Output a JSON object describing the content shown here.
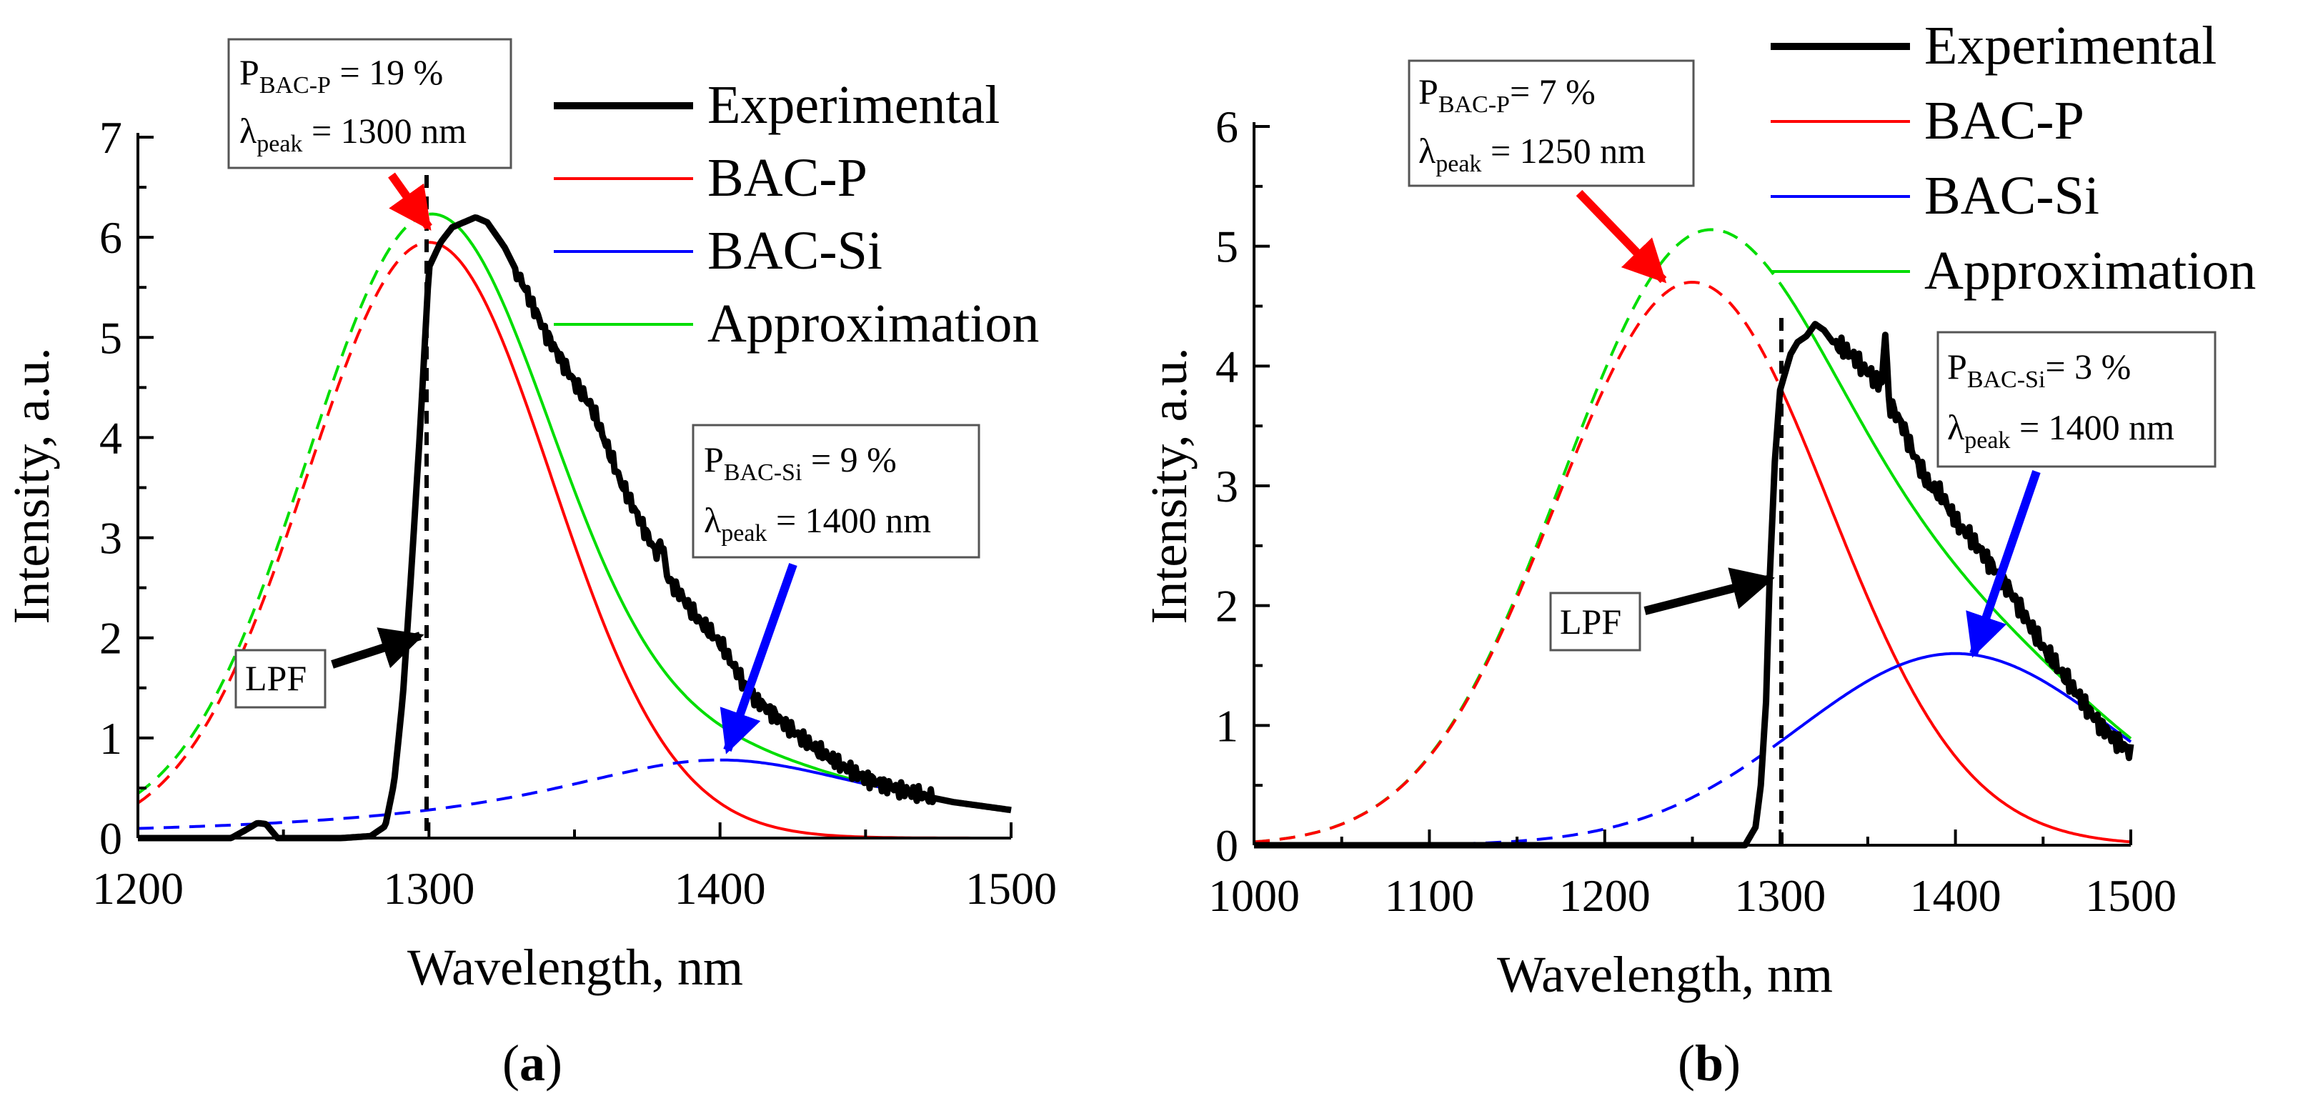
{
  "chart_data": [
    {
      "type": "line",
      "panel_label": "a",
      "xlabel": "Wavelength, nm",
      "ylabel": "Intensity, a.u.",
      "xlim": [
        1200,
        1500
      ],
      "ylim": [
        0,
        7
      ],
      "xticks": [
        1200,
        1300,
        1400,
        1500
      ],
      "yticks": [
        0,
        1,
        2,
        3,
        4,
        5,
        6,
        7
      ],
      "legend": [
        "Experimental",
        "BAC-P",
        "BAC-Si",
        "Approximation"
      ],
      "series": [
        {
          "name": "Experimental",
          "color": "#000000",
          "x": [
            1200,
            1232,
            1237,
            1241,
            1244,
            1248,
            1252,
            1270,
            1280,
            1285,
            1288,
            1291,
            1294,
            1297,
            1300,
            1304,
            1308,
            1312,
            1316,
            1320,
            1326,
            1332,
            1340,
            1350,
            1356,
            1360,
            1366,
            1372,
            1378,
            1380,
            1382,
            1386,
            1392,
            1400,
            1405,
            1410,
            1420,
            1430,
            1440,
            1450,
            1460,
            1470,
            1480,
            1490,
            1500
          ],
          "y": [
            0,
            0,
            0.08,
            0.15,
            0.14,
            0,
            0,
            0,
            0.02,
            0.12,
            0.55,
            1.4,
            2.7,
            4.1,
            5.7,
            5.95,
            6.1,
            6.15,
            6.2,
            6.15,
            5.9,
            5.55,
            5.05,
            4.55,
            4.3,
            4.0,
            3.55,
            3.2,
            2.85,
            2.95,
            2.6,
            2.45,
            2.2,
            1.95,
            1.7,
            1.45,
            1.2,
            0.95,
            0.75,
            0.6,
            0.5,
            0.42,
            0.36,
            0.32,
            0.28
          ]
        },
        {
          "name": "BAC-P",
          "color": "#ff0000",
          "center": 1300,
          "amplitude": 5.95,
          "sigma": 42,
          "dashed_below": 1300
        },
        {
          "name": "BAC-Si",
          "color": "#0000ff",
          "center": 1400,
          "amplitude": 0.78,
          "gamma": 75,
          "dashed_below": 1400
        },
        {
          "name": "Approximation",
          "color": "#00dd00",
          "dashed_below": 1300
        }
      ],
      "lpf_nm": 1300,
      "annotations": {
        "bac_p": {
          "symbol": "P",
          "sub": "BAC-P",
          "value": " = 19 %",
          "lambda": "λ",
          "lambda_sub": "peak",
          "lambda_value": " = 1300 nm"
        },
        "bac_si": {
          "symbol": "P",
          "sub": "BAC-Si",
          "value": " = 9 %",
          "lambda": "λ",
          "lambda_sub": "peak",
          "lambda_value": " = 1400 nm"
        },
        "lpf": "LPF"
      }
    },
    {
      "type": "line",
      "panel_label": "b",
      "xlabel": "Wavelength, nm",
      "ylabel": "Intensity, a.u.",
      "xlim": [
        1000,
        1500
      ],
      "ylim": [
        0,
        6
      ],
      "xticks": [
        1000,
        1100,
        1200,
        1300,
        1400,
        1500
      ],
      "yticks": [
        0,
        1,
        2,
        3,
        4,
        5,
        6
      ],
      "legend": [
        "Experimental",
        "BAC-P",
        "BAC-Si",
        "Approximation"
      ],
      "series": [
        {
          "name": "Experimental",
          "color": "#000000",
          "x": [
            1000,
            1280,
            1286,
            1289,
            1292,
            1294,
            1297,
            1300,
            1303,
            1306,
            1310,
            1315,
            1320,
            1325,
            1330,
            1340,
            1350,
            1358,
            1360,
            1362,
            1366,
            1370,
            1375,
            1380,
            1385,
            1390,
            1395,
            1400,
            1410,
            1420,
            1430,
            1440,
            1450,
            1460,
            1470,
            1480,
            1490,
            1500
          ],
          "y": [
            0,
            0,
            0.15,
            0.5,
            1.2,
            2.2,
            3.2,
            3.8,
            3.95,
            4.1,
            4.2,
            4.25,
            4.35,
            4.3,
            4.2,
            4.1,
            3.95,
            3.85,
            4.3,
            3.7,
            3.6,
            3.5,
            3.3,
            3.15,
            3.0,
            2.95,
            2.85,
            2.7,
            2.55,
            2.35,
            2.15,
            1.9,
            1.65,
            1.45,
            1.25,
            1.05,
            0.9,
            0.78
          ]
        },
        {
          "name": "BAC-P",
          "color": "#ff0000",
          "center": 1250,
          "amplitude": 4.7,
          "sigma": 78,
          "dashed_below": 1300
        },
        {
          "name": "BAC-Si",
          "color": "#0000ff",
          "center": 1400,
          "amplitude": 1.6,
          "sigma": 90,
          "dashed_below": 1300
        },
        {
          "name": "Approximation",
          "color": "#00dd00",
          "dashed_below": 1300
        }
      ],
      "lpf_nm": 1300,
      "annotations": {
        "bac_p": {
          "symbol": "P",
          "sub": "BAC-P",
          "value": "= 7 %",
          "lambda": "λ",
          "lambda_sub": "peak",
          "lambda_value": " = 1250 nm"
        },
        "bac_si": {
          "symbol": "P",
          "sub": "BAC-Si",
          "value": "= 3 %",
          "lambda": "λ",
          "lambda_sub": "peak",
          "lambda_value": " = 1400 nm"
        },
        "lpf": "LPF"
      }
    }
  ],
  "panel_labels": [
    "(a)",
    "(b)"
  ],
  "colors": {
    "experimental": "#000000",
    "bac_p": "#ff0000",
    "bac_si": "#0000ff",
    "approximation": "#00dd00"
  }
}
